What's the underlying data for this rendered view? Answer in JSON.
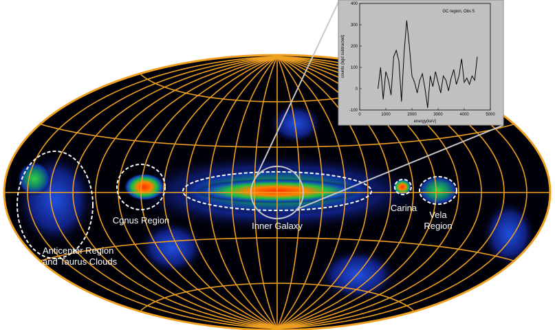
{
  "map": {
    "regions": [
      {
        "label": [
          "Anticenter Region",
          "and Taurus Clouds"
        ]
      },
      {
        "label": [
          "Cgnus Region"
        ]
      },
      {
        "label": [
          "Inner Galaxy"
        ]
      },
      {
        "label": [
          "Carina"
        ]
      },
      {
        "label": [
          "Vela",
          "Region"
        ]
      }
    ]
  },
  "chart_data": {
    "type": "line",
    "annotation": "GC region, Obs 5",
    "xlabel": "energy(keV)",
    "ylabel": "counts (bgd subtracted)",
    "x": [
      700,
      800,
      900,
      1000,
      1100,
      1200,
      1300,
      1400,
      1500,
      1600,
      1700,
      1800,
      1900,
      2000,
      2100,
      2200,
      2300,
      2400,
      2500,
      2600,
      2700,
      2800,
      2900,
      3000,
      3100,
      3200,
      3300,
      3400,
      3500,
      3600,
      3700,
      3800,
      3900,
      4000,
      4100,
      4200,
      4300,
      4400,
      4500
    ],
    "series": [
      {
        "color": "#000000",
        "values": [
          0,
          100,
          -50,
          80,
          40,
          -30,
          150,
          180,
          130,
          -60,
          170,
          320,
          200,
          60,
          30,
          -20,
          40,
          70,
          0,
          -90,
          60,
          10,
          80,
          30,
          -20,
          60,
          40,
          -10,
          50,
          90,
          20,
          60,
          140,
          30,
          50,
          20,
          60,
          40,
          150
        ]
      }
    ],
    "xlim": [
      0,
      5000
    ],
    "xticks": [
      0,
      1000,
      2000,
      3000,
      4000,
      5000
    ],
    "ylim": [
      -100,
      400
    ],
    "yticks": [
      -100,
      0,
      100,
      200,
      300,
      400
    ]
  }
}
